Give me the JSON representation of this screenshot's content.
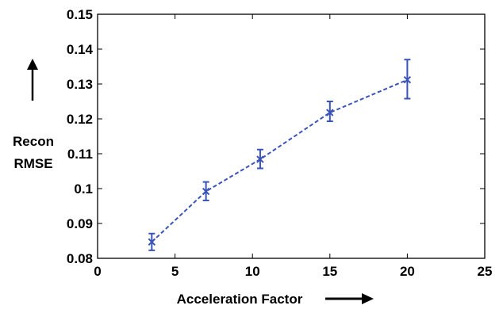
{
  "chart_data": {
    "type": "line",
    "title": "",
    "xlabel": "Acceleration Factor",
    "ylabel_lines": [
      "Recon",
      "RMSE"
    ],
    "xlim": [
      0,
      25
    ],
    "ylim": [
      0.08,
      0.15
    ],
    "xticks": [
      0,
      5,
      10,
      15,
      20,
      25
    ],
    "xtick_labels": [
      "0",
      "5",
      "10",
      "15",
      "20",
      "25"
    ],
    "yticks": [
      0.08,
      0.09,
      0.1,
      0.11,
      0.12,
      0.13,
      0.14,
      0.15
    ],
    "ytick_labels": [
      "0.08",
      "0.09",
      "0.1",
      "0.11",
      "0.12",
      "0.13",
      "0.14",
      "0.15"
    ],
    "grid": false,
    "legend": false,
    "line_style": "dashed",
    "marker": "x",
    "series": [
      {
        "color": "#3a53b8",
        "x": [
          3.5,
          7,
          10.5,
          15,
          20
        ],
        "y": [
          0.0847,
          0.0992,
          0.1084,
          0.1218,
          0.1312
        ],
        "err_low": [
          0.0823,
          0.0966,
          0.1058,
          0.1193,
          0.1258
        ],
        "err_high": [
          0.0871,
          0.1019,
          0.1112,
          0.125,
          0.137
        ]
      }
    ],
    "annotations": [
      "up-arrow",
      "right-arrow"
    ]
  }
}
